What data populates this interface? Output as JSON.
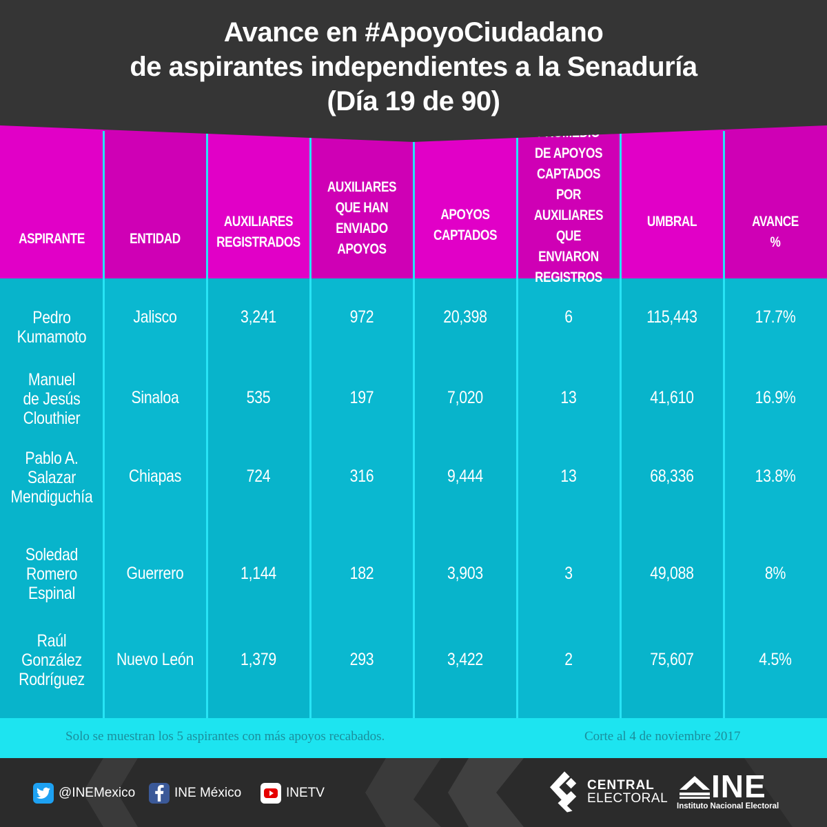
{
  "title": {
    "line1": "Avance en #ApoyoCiudadano",
    "line2": "de aspirantes independientes a la Senaduría",
    "line3": "(Día 19 de 90)"
  },
  "columns": [
    "ASPIRANTE",
    "ENTIDAD",
    "AUXILIARES\nREGISTRADOS",
    "AUXILIARES\nQUE HAN\nENVIADO\nAPOYOS",
    "APOYOS\nCAPTADOS",
    "PROMEDIO\nDE APOYOS\nCAPTADOS POR\nAUXILIARES\nQUE ENVIARON\nREGISTROS",
    "UMBRAL",
    "AVANCE\n%"
  ],
  "rows": [
    [
      "Pedro\nKumamoto",
      "Jalisco",
      "3,241",
      "972",
      "20,398",
      "6",
      "115,443",
      "17.7%"
    ],
    [
      "Manuel\nde Jesús\nClouthier",
      "Sinaloa",
      "535",
      "197",
      "7,020",
      "13",
      "41,610",
      "16.9%"
    ],
    [
      "Pablo A.\nSalazar\nMendiguchía",
      "Chiapas",
      "724",
      "316",
      "9,444",
      "13",
      "68,336",
      "13.8%"
    ],
    [
      "Soledad\nRomero\nEspinal",
      "Guerrero",
      "1,144",
      "182",
      "3,903",
      "3",
      "49,088",
      "8%"
    ],
    [
      "Raúl\nGonzález\nRodríguez",
      "Nuevo León",
      "1,379",
      "293",
      "3,422",
      "2",
      "75,607",
      "4.5%"
    ]
  ],
  "notes": {
    "left": "Solo se muestran los 5 aspirantes con más apoyos recabados.",
    "right": "Corte al 4 de noviembre 2017"
  },
  "footer": {
    "twitter": "@INEMexico",
    "facebook": "INE México",
    "youtube": "INETV",
    "central_line1": "CENTRAL",
    "central_line2": "ELECTORAL",
    "ine_logo": "INE",
    "ine_full": "Instituto Nacional Electoral"
  },
  "colors": {
    "header_bg": "#353535",
    "magenta": "#e100c7",
    "cyan": "#12bcd0",
    "notes_bg": "#1de4f0"
  }
}
